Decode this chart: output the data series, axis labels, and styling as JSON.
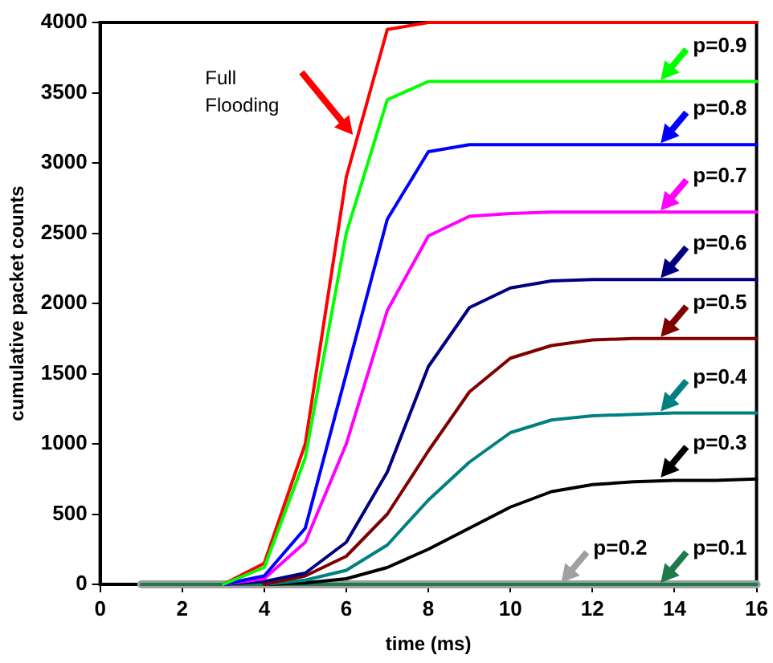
{
  "chart_data": {
    "type": "line",
    "xlabel": "time (ms)",
    "ylabel": "cumulative packet counts",
    "x": [
      1,
      2,
      3,
      4,
      5,
      6,
      7,
      8,
      9,
      10,
      11,
      12,
      13,
      14,
      15,
      16
    ],
    "series": [
      {
        "name": "p=0.9",
        "color": "#00ff00",
        "values": [
          null,
          null,
          0,
          120,
          900,
          2500,
          3450,
          3580,
          3580,
          3580,
          3580,
          3580,
          3580,
          3580,
          3580,
          3580
        ]
      },
      {
        "name": "p=0.8",
        "color": "#0000ff",
        "values": [
          null,
          null,
          0,
          60,
          400,
          1500,
          2600,
          3080,
          3130,
          3130,
          3130,
          3130,
          3130,
          3130,
          3130,
          3130
        ]
      },
      {
        "name": "p=0.7",
        "color": "#ff00ff",
        "values": [
          null,
          null,
          0,
          40,
          300,
          1000,
          1950,
          2480,
          2620,
          2640,
          2650,
          2650,
          2650,
          2650,
          2650,
          2650
        ]
      },
      {
        "name": "p=0.6",
        "color": "#000080",
        "values": [
          null,
          null,
          0,
          20,
          80,
          300,
          800,
          1550,
          1970,
          2110,
          2160,
          2170,
          2170,
          2170,
          2170,
          2170
        ]
      },
      {
        "name": "p=0.5",
        "color": "#800000",
        "values": [
          null,
          null,
          null,
          0,
          60,
          200,
          500,
          950,
          1370,
          1610,
          1700,
          1740,
          1750,
          1750,
          1750,
          1750
        ]
      },
      {
        "name": "p=0.4",
        "color": "#008080",
        "values": [
          null,
          null,
          null,
          0,
          30,
          100,
          280,
          600,
          870,
          1080,
          1170,
          1200,
          1210,
          1220,
          1220,
          1220
        ]
      },
      {
        "name": "p=0.3",
        "color": "#000000",
        "values": [
          null,
          null,
          null,
          0,
          10,
          40,
          120,
          250,
          400,
          550,
          660,
          710,
          730,
          740,
          740,
          750
        ]
      },
      {
        "name": "p=0.2",
        "color": "#a0a0a0",
        "values": [
          0,
          0,
          0,
          0,
          0,
          0,
          0,
          0,
          0,
          0,
          0,
          0,
          0,
          0,
          0,
          0
        ]
      },
      {
        "name": "p=0.1",
        "color": "#1e7a4a",
        "values": [
          0,
          0,
          0,
          0,
          0,
          0,
          0,
          0,
          0,
          0,
          0,
          0,
          0,
          0,
          0,
          0
        ]
      },
      {
        "color": "#ff0000",
        "values": [
          null,
          null,
          0,
          150,
          1000,
          2900,
          3950,
          4000,
          4000,
          4000,
          4000,
          4000,
          4000,
          4000,
          4000,
          4000
        ]
      }
    ],
    "annotations": [
      "Full Flooding"
    ],
    "xlim": [
      0,
      16
    ],
    "xticks": [
      0,
      2,
      4,
      6,
      8,
      10,
      12,
      14,
      16
    ],
    "ylim": [
      0,
      4000
    ],
    "yticks": [
      0,
      500,
      1000,
      1500,
      2000,
      2500,
      3000,
      3500,
      4000
    ],
    "grid": false,
    "legend": false,
    "marker": "none",
    "line_style": "solid"
  }
}
